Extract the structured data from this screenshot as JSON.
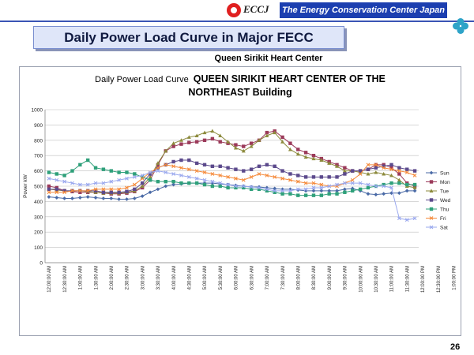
{
  "header": {
    "logo_text": "ECCJ",
    "org_name": "The Energy Conservation Center Japan"
  },
  "slide": {
    "title": "Daily Power Load Curve in Major FECC",
    "subtitle": "Queen Sirikit Heart Center",
    "page_number": "26"
  },
  "colors": {
    "header_bar": "#1c3fb0",
    "banner": "#dfe6f9",
    "Sun": "#4a6aa6",
    "Mon": "#9b3a5a",
    "Tue": "#8c8a3c",
    "Wed": "#5c4a8c",
    "Thu": "#2fa07a",
    "Fri": "#f58a3a",
    "Sat": "#9aa8ee"
  },
  "chart_data": {
    "type": "line",
    "title_part1": "Daily Power Load Curve",
    "title_part2": "QUEEN SIRIKIT HEART CENTER OF THE",
    "title_part3": "NORTHEAST Building",
    "ylabel": "Power kW",
    "ylim": [
      0,
      1000
    ],
    "yticks": [
      0,
      100,
      200,
      300,
      400,
      500,
      600,
      700,
      800,
      900,
      1000
    ],
    "grid": true,
    "legend_position": "right",
    "x_interval_minutes": 15,
    "x_start": "12:00:00 AM",
    "x_end": "11:45:00 PM",
    "x_tick_labels": [
      "12:00:00 AM",
      "12:30:00 AM",
      "1:00:00 AM",
      "1:30:00 AM",
      "2:00:00 AM",
      "2:30:00 AM",
      "3:00:00 AM",
      "3:30:00 AM",
      "4:00:00 AM",
      "4:30:00 AM",
      "5:00:00 AM",
      "5:30:00 AM",
      "6:00:00 AM",
      "6:30:00 AM",
      "7:00:00 AM",
      "7:30:00 AM",
      "8:00:00 AM",
      "8:30:00 AM",
      "9:00:00 AM",
      "9:30:00 AM",
      "10:00:00 AM",
      "10:30:00 AM",
      "11:00:00 AM",
      "11:30:00 AM",
      "12:00:00 PM",
      "12:30:00 PM",
      "1:00:00 PM",
      "1:30:00 PM",
      "2:00:00 PM",
      "2:30:00 PM",
      "3:00:00 PM",
      "3:30:00 PM",
      "4:00:00 PM",
      "4:30:00 PM",
      "5:00:00 PM",
      "5:30:00 PM",
      "6:00:00 PM",
      "6:30:00 PM",
      "7:00:00 PM",
      "7:30:00 PM",
      "8:00:00 PM",
      "8:30:00 PM",
      "9:00:00 PM",
      "9:30:00 PM",
      "10:00:00 PM",
      "10:30:00 PM",
      "11:00:00 PM",
      "11:30:00 PM"
    ],
    "series": [
      {
        "name": "Sun",
        "marker": "diamond",
        "values": [
          430,
          425,
          420,
          420,
          425,
          430,
          425,
          420,
          420,
          415,
          415,
          420,
          435,
          460,
          480,
          500,
          510,
          515,
          520,
          520,
          520,
          520,
          515,
          510,
          505,
          500,
          495,
          495,
          490,
          485,
          480,
          480,
          475,
          470,
          470,
          470,
          470,
          470,
          480,
          485,
          470,
          450,
          445,
          450,
          455,
          455,
          470,
          470
        ]
      },
      {
        "name": "Mon",
        "marker": "square",
        "values": [
          500,
          490,
          470,
          465,
          460,
          460,
          460,
          455,
          450,
          450,
          455,
          465,
          490,
          540,
          640,
          730,
          760,
          775,
          785,
          790,
          800,
          810,
          790,
          780,
          770,
          760,
          780,
          800,
          850,
          860,
          820,
          780,
          740,
          720,
          700,
          680,
          660,
          640,
          620,
          600,
          600,
          610,
          640,
          640,
          620,
          580,
          520,
          500
        ]
      },
      {
        "name": "Tue",
        "marker": "triangle",
        "values": [
          480,
          475,
          470,
          470,
          470,
          465,
          460,
          455,
          455,
          455,
          460,
          470,
          500,
          560,
          650,
          730,
          780,
          800,
          820,
          830,
          850,
          860,
          830,
          790,
          750,
          730,
          760,
          800,
          830,
          850,
          790,
          740,
          710,
          690,
          680,
          670,
          650,
          630,
          600,
          600,
          590,
          580,
          590,
          580,
          570,
          540,
          500,
          490
        ]
      },
      {
        "name": "Wed",
        "marker": "square",
        "values": [
          480,
          480,
          470,
          470,
          470,
          470,
          470,
          460,
          460,
          460,
          465,
          480,
          520,
          580,
          620,
          640,
          660,
          670,
          670,
          650,
          640,
          630,
          630,
          620,
          610,
          600,
          610,
          630,
          640,
          630,
          600,
          580,
          570,
          560,
          560,
          560,
          560,
          560,
          580,
          600,
          600,
          610,
          620,
          630,
          640,
          620,
          610,
          600
        ]
      },
      {
        "name": "Thu",
        "marker": "square",
        "values": [
          590,
          580,
          570,
          600,
          640,
          670,
          620,
          610,
          600,
          590,
          590,
          580,
          560,
          540,
          530,
          530,
          530,
          520,
          520,
          520,
          510,
          500,
          500,
          490,
          490,
          490,
          480,
          480,
          470,
          460,
          450,
          450,
          440,
          440,
          440,
          440,
          450,
          450,
          460,
          470,
          480,
          490,
          500,
          510,
          520,
          520,
          510,
          510
        ]
      },
      {
        "name": "Fri",
        "marker": "x",
        "values": [
          460,
          460,
          460,
          470,
          470,
          470,
          480,
          480,
          480,
          480,
          490,
          510,
          550,
          590,
          620,
          640,
          630,
          620,
          610,
          600,
          590,
          580,
          570,
          560,
          550,
          540,
          560,
          580,
          570,
          560,
          550,
          540,
          530,
          520,
          520,
          510,
          500,
          500,
          520,
          540,
          580,
          640,
          640,
          620,
          610,
          600,
          590,
          570
        ]
      },
      {
        "name": "Sat",
        "marker": "x",
        "values": [
          550,
          540,
          530,
          520,
          510,
          510,
          520,
          520,
          530,
          540,
          550,
          560,
          570,
          590,
          600,
          590,
          580,
          570,
          560,
          550,
          540,
          530,
          520,
          510,
          500,
          500,
          495,
          490,
          480,
          470,
          470,
          470,
          480,
          480,
          490,
          490,
          500,
          510,
          520,
          520,
          520,
          510,
          500,
          500,
          490,
          290,
          280,
          290
        ]
      }
    ]
  }
}
